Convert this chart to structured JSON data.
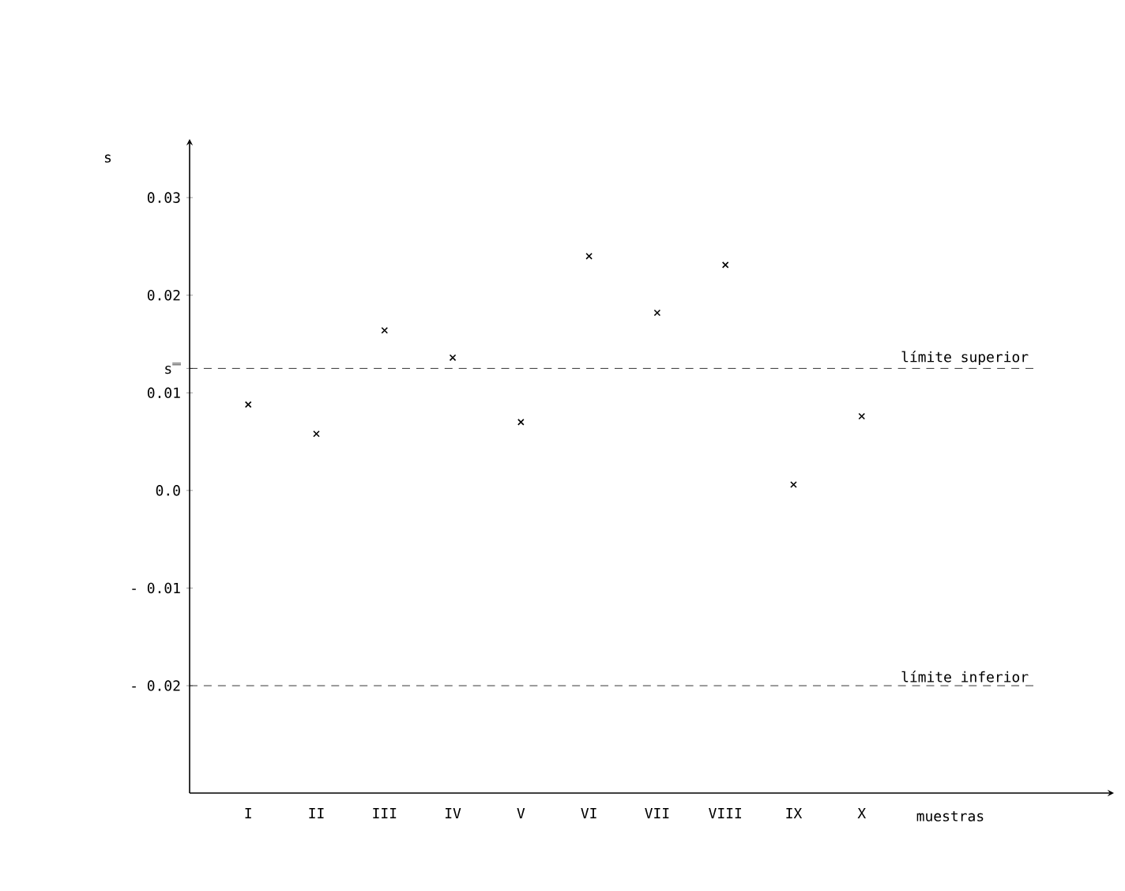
{
  "chart_data": {
    "type": "scatter",
    "xlabel": "muestras",
    "ylabel": "s",
    "categories": [
      "I",
      "II",
      "III",
      "IV",
      "V",
      "VI",
      "VII",
      "VIII",
      "IX",
      "X"
    ],
    "values": [
      0.0088,
      0.0058,
      0.0164,
      0.0136,
      0.007,
      0.024,
      0.0182,
      0.0231,
      0.0006,
      0.0076
    ],
    "color": "#000000",
    "marker": "cross",
    "grid": false,
    "legend": false,
    "ylim": [
      -0.031,
      0.036
    ],
    "yticks": [
      {
        "value": -0.02,
        "label": "- 0.02"
      },
      {
        "value": -0.01,
        "label": "- 0.01"
      },
      {
        "value": 0,
        "label": "0.0"
      },
      {
        "value": 0.01,
        "label": "0.01"
      },
      {
        "value": 0.0125,
        "label": "s̿"
      },
      {
        "value": 0.02,
        "label": "0.02"
      },
      {
        "value": 0.03,
        "label": "0.03"
      }
    ],
    "ref_lines": [
      {
        "axis": "y",
        "value": 0.0125,
        "label": "límite superior",
        "line_style": "dashed"
      },
      {
        "axis": "y",
        "value": -0.02,
        "label": "límite inferior",
        "line_style": "dashed"
      }
    ]
  }
}
